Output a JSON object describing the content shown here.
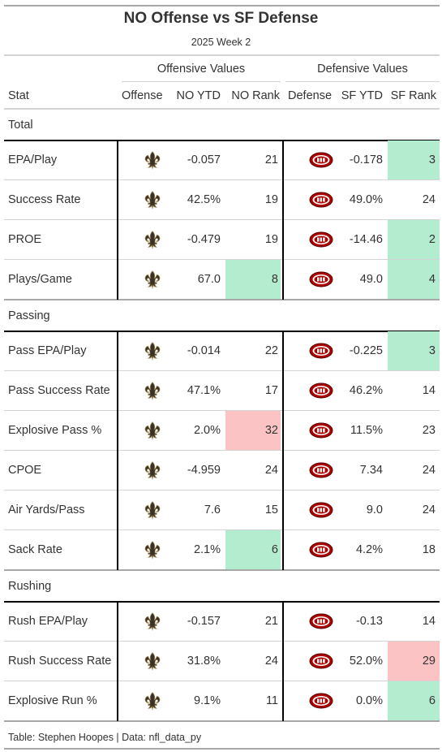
{
  "colors": {
    "good": "#b4ecd0",
    "bad": "#fcc3c5",
    "saints": "#3a3226",
    "niners": "#aa0000"
  },
  "title": "NO Offense vs SF Defense",
  "subtitle": "2025 Week 2",
  "spanners": {
    "offense": "Offensive Values",
    "defense": "Defensive Values"
  },
  "columns": {
    "stat": "Stat",
    "offense": "Offense",
    "no_ytd": "NO YTD",
    "no_rank": "NO Rank",
    "defense": "Defense",
    "sf_ytd": "SF YTD",
    "sf_rank": "SF Rank"
  },
  "source": "Table: Stephen Hoopes | Data: nfl_data_py",
  "chart_data": {
    "type": "table",
    "groups": [
      {
        "name": "Total",
        "rows": [
          {
            "stat": "EPA/Play",
            "offense_icon": "saints-fleur-de-lis-icon",
            "no_ytd": "-0.057",
            "no_rank": "21",
            "no_hl": "",
            "defense_icon": "49ers-logo-icon",
            "sf_ytd": "-0.178",
            "sf_rank": "3",
            "sf_hl": "good"
          },
          {
            "stat": "Success Rate",
            "offense_icon": "saints-fleur-de-lis-icon",
            "no_ytd": "42.5%",
            "no_rank": "19",
            "no_hl": "",
            "defense_icon": "49ers-logo-icon",
            "sf_ytd": "49.0%",
            "sf_rank": "24",
            "sf_hl": ""
          },
          {
            "stat": "PROE",
            "offense_icon": "saints-fleur-de-lis-icon",
            "no_ytd": "-0.479",
            "no_rank": "19",
            "no_hl": "",
            "defense_icon": "49ers-logo-icon",
            "sf_ytd": "-14.46",
            "sf_rank": "2",
            "sf_hl": "good"
          },
          {
            "stat": "Plays/Game",
            "offense_icon": "saints-fleur-de-lis-icon",
            "no_ytd": "67.0",
            "no_rank": "8",
            "no_hl": "good",
            "defense_icon": "49ers-logo-icon",
            "sf_ytd": "49.0",
            "sf_rank": "4",
            "sf_hl": "good"
          }
        ]
      },
      {
        "name": "Passing",
        "rows": [
          {
            "stat": "Pass EPA/Play",
            "offense_icon": "saints-fleur-de-lis-icon",
            "no_ytd": "-0.014",
            "no_rank": "22",
            "no_hl": "",
            "defense_icon": "49ers-logo-icon",
            "sf_ytd": "-0.225",
            "sf_rank": "3",
            "sf_hl": "good"
          },
          {
            "stat": "Pass Success Rate",
            "offense_icon": "saints-fleur-de-lis-icon",
            "no_ytd": "47.1%",
            "no_rank": "17",
            "no_hl": "",
            "defense_icon": "49ers-logo-icon",
            "sf_ytd": "46.2%",
            "sf_rank": "14",
            "sf_hl": ""
          },
          {
            "stat": "Explosive Pass %",
            "offense_icon": "saints-fleur-de-lis-icon",
            "no_ytd": "2.0%",
            "no_rank": "32",
            "no_hl": "bad",
            "defense_icon": "49ers-logo-icon",
            "sf_ytd": "11.5%",
            "sf_rank": "23",
            "sf_hl": ""
          },
          {
            "stat": "CPOE",
            "offense_icon": "saints-fleur-de-lis-icon",
            "no_ytd": "-4.959",
            "no_rank": "24",
            "no_hl": "",
            "defense_icon": "49ers-logo-icon",
            "sf_ytd": "7.34",
            "sf_rank": "24",
            "sf_hl": ""
          },
          {
            "stat": "Air Yards/Pass",
            "offense_icon": "saints-fleur-de-lis-icon",
            "no_ytd": "7.6",
            "no_rank": "15",
            "no_hl": "",
            "defense_icon": "49ers-logo-icon",
            "sf_ytd": "9.0",
            "sf_rank": "24",
            "sf_hl": ""
          },
          {
            "stat": "Sack Rate",
            "offense_icon": "saints-fleur-de-lis-icon",
            "no_ytd": "2.1%",
            "no_rank": "6",
            "no_hl": "good",
            "defense_icon": "49ers-logo-icon",
            "sf_ytd": "4.2%",
            "sf_rank": "18",
            "sf_hl": ""
          }
        ]
      },
      {
        "name": "Rushing",
        "rows": [
          {
            "stat": "Rush EPA/Play",
            "offense_icon": "saints-fleur-de-lis-icon",
            "no_ytd": "-0.157",
            "no_rank": "21",
            "no_hl": "",
            "defense_icon": "49ers-logo-icon",
            "sf_ytd": "-0.13",
            "sf_rank": "14",
            "sf_hl": ""
          },
          {
            "stat": "Rush Success Rate",
            "offense_icon": "saints-fleur-de-lis-icon",
            "no_ytd": "31.8%",
            "no_rank": "24",
            "no_hl": "",
            "defense_icon": "49ers-logo-icon",
            "sf_ytd": "52.0%",
            "sf_rank": "29",
            "sf_hl": "bad"
          },
          {
            "stat": "Explosive Run %",
            "offense_icon": "saints-fleur-de-lis-icon",
            "no_ytd": "9.1%",
            "no_rank": "11",
            "no_hl": "",
            "defense_icon": "49ers-logo-icon",
            "sf_ytd": "0.0%",
            "sf_rank": "6",
            "sf_hl": "good"
          }
        ]
      }
    ]
  }
}
